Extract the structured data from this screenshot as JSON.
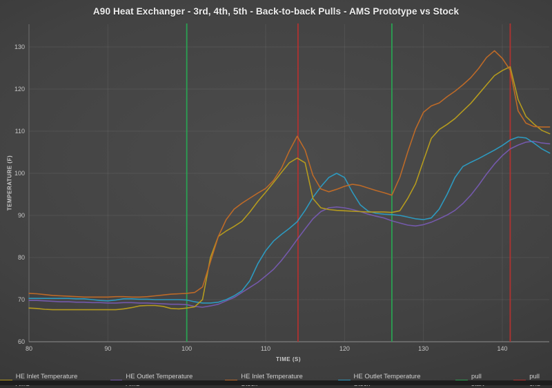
{
  "title": "A90 Heat Exchanger - 3rd, 4th, 5th - Back-to-back Pulls - AMS Prototype vs Stock",
  "chart_data": {
    "type": "line",
    "title": "A90 Heat Exchanger - 3rd, 4th, 5th - Back-to-back Pulls - AMS Prototype vs Stock",
    "xlabel": "TIME (S)",
    "ylabel": "TEMPERATURE (F)",
    "xlim": [
      80,
      146
    ],
    "ylim": [
      60,
      135.4
    ],
    "x_ticks": [
      80,
      90,
      100,
      110,
      120,
      130,
      140
    ],
    "y_ticks": [
      60,
      70,
      80,
      90,
      100,
      110,
      120,
      130
    ],
    "grid": true,
    "legend_position": "bottom",
    "x": [
      80,
      81,
      82,
      83,
      84,
      85,
      86,
      87,
      88,
      89,
      90,
      91,
      92,
      93,
      94,
      95,
      96,
      97,
      98,
      99,
      100,
      101,
      102,
      103,
      104,
      105,
      106,
      107,
      108,
      109,
      110,
      111,
      112,
      113,
      114,
      115,
      116,
      117,
      118,
      119,
      120,
      121,
      122,
      123,
      124,
      125,
      126,
      127,
      128,
      129,
      130,
      131,
      132,
      133,
      134,
      135,
      136,
      137,
      138,
      139,
      140,
      141,
      142,
      143,
      144,
      145,
      146
    ],
    "series": [
      {
        "name": "HE Inlet Temperature AMS",
        "color": "#b59b1e",
        "values": [
          68.0,
          67.9,
          67.7,
          67.6,
          67.6,
          67.6,
          67.6,
          67.6,
          67.6,
          67.6,
          67.6,
          67.6,
          67.8,
          68.1,
          68.5,
          68.6,
          68.6,
          68.4,
          67.9,
          67.8,
          68.0,
          68.3,
          70.0,
          80.0,
          85.0,
          86.3,
          87.4,
          88.6,
          90.8,
          93.3,
          95.5,
          97.8,
          100.2,
          102.5,
          103.6,
          102.5,
          94.0,
          91.8,
          91.4,
          91.2,
          91.1,
          91.0,
          90.9,
          90.8,
          90.8,
          90.8,
          90.7,
          91.1,
          94.0,
          97.5,
          103.0,
          108.3,
          110.4,
          111.6,
          113.0,
          114.8,
          116.6,
          118.8,
          121.0,
          123.2,
          124.4,
          125.3,
          117.5,
          113.5,
          111.7,
          110.2,
          109.4
        ]
      },
      {
        "name": "HE Outlet Temperature AMS",
        "color": "#7459ab",
        "values": [
          69.8,
          69.8,
          69.7,
          69.6,
          69.5,
          69.5,
          69.4,
          69.4,
          69.3,
          69.3,
          69.2,
          69.2,
          69.3,
          69.3,
          69.2,
          69.2,
          69.1,
          69.0,
          68.9,
          68.9,
          68.8,
          68.4,
          68.2,
          68.5,
          68.9,
          69.7,
          70.5,
          71.7,
          72.9,
          74.1,
          75.6,
          77.2,
          79.3,
          81.7,
          84.3,
          86.8,
          89.2,
          90.9,
          91.8,
          92.0,
          91.8,
          91.4,
          90.9,
          90.3,
          89.8,
          89.4,
          88.7,
          88.2,
          87.7,
          87.5,
          87.8,
          88.4,
          89.2,
          90.1,
          91.2,
          92.8,
          94.8,
          97.2,
          99.8,
          102.2,
          104.2,
          105.8,
          106.7,
          107.4,
          107.6,
          107.2,
          107.0
        ]
      },
      {
        "name": "HE Inlet Temperature Stock",
        "color": "#bd6a28",
        "values": [
          71.5,
          71.4,
          71.2,
          71.0,
          70.9,
          70.8,
          70.7,
          70.6,
          70.6,
          70.6,
          70.6,
          70.7,
          70.7,
          70.6,
          70.6,
          70.7,
          70.9,
          71.1,
          71.3,
          71.4,
          71.5,
          71.7,
          73.0,
          79.0,
          85.0,
          89.0,
          91.5,
          92.9,
          94.1,
          95.3,
          96.4,
          98.3,
          101.2,
          105.3,
          108.8,
          105.5,
          99.5,
          96.3,
          95.6,
          96.2,
          96.9,
          97.4,
          97.1,
          96.5,
          95.9,
          95.4,
          94.8,
          99.0,
          105.0,
          110.5,
          114.5,
          116.0,
          116.7,
          118.2,
          119.5,
          121.0,
          122.7,
          124.9,
          127.5,
          129.1,
          127.3,
          124.5,
          114.8,
          111.9,
          111.1,
          111.0,
          111.0
        ]
      },
      {
        "name": "HE Outlet Temperature Stock",
        "color": "#2d9ac0",
        "values": [
          70.3,
          70.3,
          70.3,
          70.3,
          70.3,
          70.3,
          70.2,
          70.2,
          70.0,
          69.8,
          69.7,
          69.9,
          70.2,
          70.2,
          70.1,
          70.1,
          70.0,
          70.0,
          70.0,
          70.0,
          69.9,
          69.5,
          69.2,
          69.2,
          69.4,
          70.0,
          70.9,
          72.1,
          74.5,
          78.5,
          81.6,
          83.9,
          85.5,
          86.9,
          88.5,
          91.2,
          94.3,
          96.8,
          99.0,
          100.0,
          99.0,
          95.5,
          92.5,
          91.0,
          90.5,
          90.3,
          90.2,
          90.0,
          89.6,
          89.2,
          89.0,
          89.4,
          91.5,
          95.0,
          99.0,
          101.6,
          102.6,
          103.5,
          104.5,
          105.5,
          106.6,
          107.9,
          108.6,
          108.4,
          107.2,
          105.8,
          104.8
        ]
      }
    ],
    "vlines": [
      {
        "name": "pull start",
        "color": "#2aa152",
        "x": [
          100,
          126
        ]
      },
      {
        "name": "pull end",
        "color": "#b03230",
        "x": [
          114.1,
          141
        ]
      }
    ]
  }
}
